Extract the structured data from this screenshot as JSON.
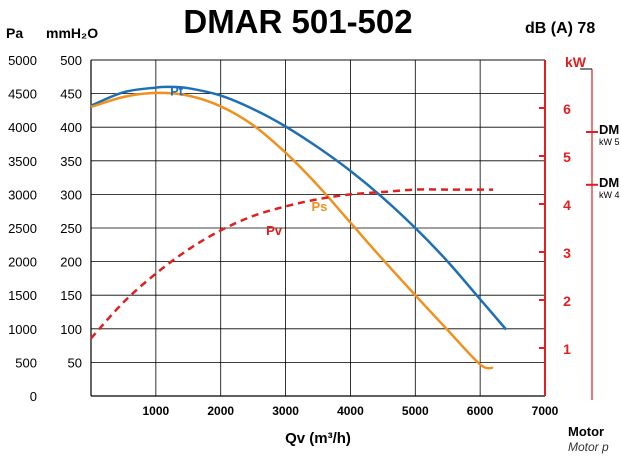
{
  "chart_data": {
    "type": "line",
    "title": "DMAR 501-502",
    "noise_label": "dB (A) 78",
    "units": {
      "pa": "Pa",
      "mmh2o": "mmH₂O",
      "kw": "kW"
    },
    "xlabel": "Qv (m³/h)",
    "x_ticks": [
      "1000",
      "2000",
      "3000",
      "4000",
      "5000",
      "6000",
      "7000"
    ],
    "xlim": [
      0,
      7000
    ],
    "pa_ticks": [
      "0",
      "500",
      "1000",
      "1500",
      "2000",
      "2500",
      "3000",
      "3500",
      "4000",
      "4500",
      "5000"
    ],
    "mm_ticks": [
      "50",
      "100",
      "150",
      "200",
      "250",
      "300",
      "350",
      "400",
      "450",
      "500"
    ],
    "kw_ticks": [
      "1",
      "2",
      "3",
      "4",
      "5",
      "6"
    ],
    "ylim_mmh2o": [
      0,
      500
    ],
    "ylim_kw": [
      0,
      7
    ],
    "grid": true,
    "series": [
      {
        "name": "Pt",
        "axis": "mmh2o",
        "color": "#1f6fb5",
        "dash": false,
        "x": [
          0,
          500,
          1000,
          1200,
          1500,
          2000,
          2500,
          3000,
          3500,
          4000,
          4500,
          5000,
          5500,
          6000,
          6400
        ],
        "y": [
          432,
          452,
          459,
          460,
          458,
          447,
          427,
          401,
          370,
          335,
          295,
          250,
          200,
          144,
          99
        ]
      },
      {
        "name": "Ps",
        "axis": "mmh2o",
        "color": "#f0901e",
        "dash": false,
        "x": [
          0,
          500,
          1000,
          1500,
          2000,
          2500,
          3000,
          3500,
          4000,
          4500,
          5000,
          5500,
          6000,
          6200
        ],
        "y": [
          430,
          445,
          451,
          447,
          431,
          403,
          362,
          313,
          258,
          203,
          150,
          98,
          47,
          42
        ]
      },
      {
        "name": "Pv",
        "axis": "kw",
        "color": "#e02020",
        "dash": true,
        "x": [
          0,
          500,
          1000,
          1500,
          2000,
          2500,
          3000,
          3500,
          4000,
          4500,
          5000,
          5500,
          6000,
          6200
        ],
        "y": [
          1.2,
          1.95,
          2.55,
          3.05,
          3.45,
          3.75,
          3.95,
          4.1,
          4.2,
          4.25,
          4.3,
          4.3,
          4.3,
          4.3
        ]
      }
    ],
    "motors": [
      {
        "name": "DM",
        "power": "kW 5",
        "kw": 5.5
      },
      {
        "name": "DM",
        "power": "kW 4",
        "kw": 4.4
      }
    ],
    "footer": {
      "title": "Motor",
      "subtitle": "Motor p"
    }
  }
}
